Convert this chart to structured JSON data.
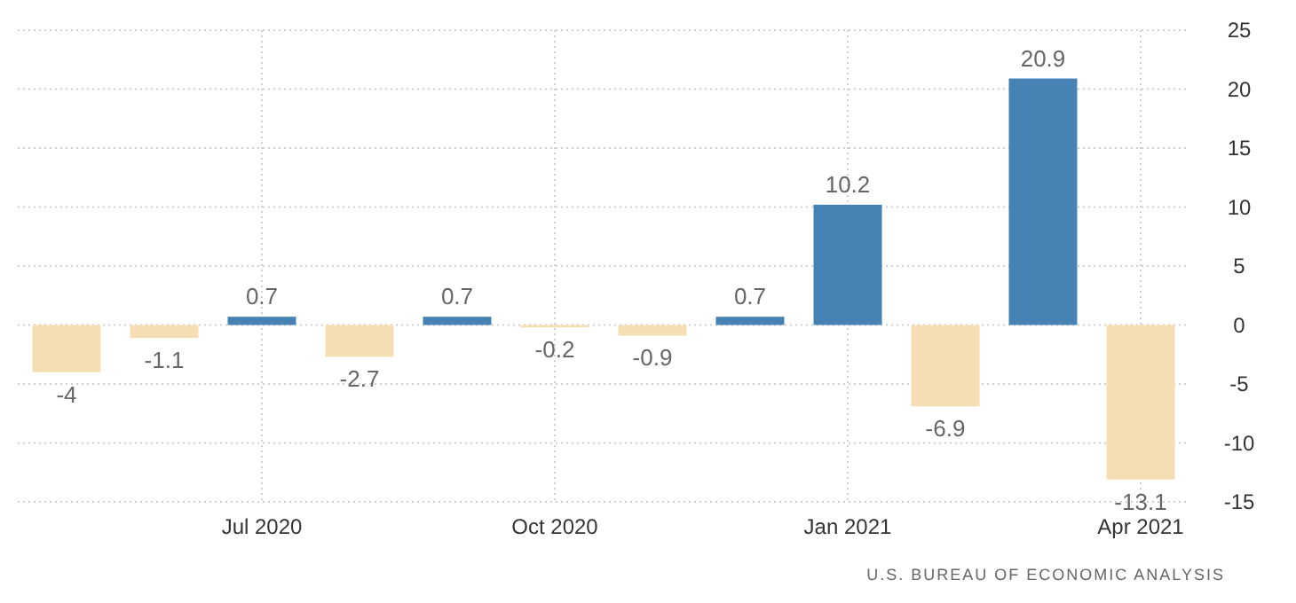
{
  "chart_data": {
    "type": "bar",
    "categories": [
      null,
      null,
      "Jul 2020",
      null,
      null,
      "Oct 2020",
      null,
      null,
      "Jan 2021",
      null,
      null,
      "Apr 2021"
    ],
    "values": [
      -4,
      -1.1,
      0.7,
      -2.7,
      0.7,
      -0.2,
      -0.9,
      0.7,
      10.2,
      -6.9,
      20.9,
      -13.1
    ],
    "colors": [
      "#f5deb3",
      "#f5deb3",
      "#4682b4",
      "#f5deb3",
      "#4682b4",
      "#f5deb3",
      "#f5deb3",
      "#4682b4",
      "#4682b4",
      "#f5deb3",
      "#4682b4",
      "#f5deb3"
    ],
    "ylim": [
      -15,
      25
    ],
    "yticks": [
      -15,
      -10,
      -5,
      0,
      5,
      10,
      15,
      20,
      25
    ],
    "grid": true,
    "data_labels": true,
    "annotations": [
      "U.S. BUREAU OF ECONOMIC ANALYSIS"
    ]
  }
}
